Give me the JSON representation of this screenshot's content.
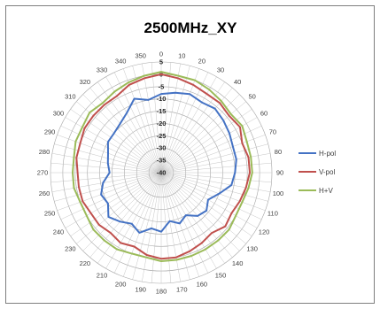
{
  "chart_data": {
    "type": "polar-line",
    "title": "2500MHz_XY",
    "angle_labels": [
      "0",
      "10",
      "20",
      "30",
      "40",
      "50",
      "60",
      "70",
      "80",
      "90",
      "100",
      "110",
      "120",
      "130",
      "140",
      "150",
      "160",
      "170",
      "180",
      "190",
      "200",
      "210",
      "220",
      "230",
      "240",
      "250",
      "260",
      "270",
      "280",
      "290",
      "300",
      "310",
      "320",
      "330",
      "340",
      "350"
    ],
    "radial_labels": [
      "5",
      "0",
      "-5",
      "-10",
      "-15",
      "-20",
      "-25",
      "-30",
      "-35",
      "-40"
    ],
    "r_range": [
      -40,
      5
    ],
    "angles": [
      0,
      10,
      20,
      30,
      40,
      50,
      60,
      70,
      80,
      90,
      100,
      110,
      120,
      130,
      140,
      150,
      160,
      170,
      180,
      190,
      200,
      210,
      220,
      230,
      240,
      250,
      260,
      270,
      280,
      290,
      300,
      310,
      320,
      330,
      340,
      350
    ],
    "series": [
      {
        "name": "H-pol",
        "color": "#4472c4",
        "values": [
          -8,
          -7,
          -6,
          -7,
          -6,
          -7,
          -8,
          -9,
          -9,
          -10,
          -11,
          -15,
          -18,
          -16,
          -17,
          -20,
          -18,
          -20,
          -16,
          -17,
          -14,
          -16,
          -14,
          -12,
          -15,
          -14,
          -16,
          -19,
          -18,
          -17,
          -15,
          -15,
          -14,
          -12,
          -8,
          -10
        ]
      },
      {
        "name": "V-pol",
        "color": "#c0504d",
        "values": [
          0,
          -1,
          -2,
          -3,
          -3,
          -4,
          -3,
          -5,
          -4,
          -4,
          -5,
          -6,
          -7,
          -6,
          -8,
          -7,
          -6,
          -5,
          -5,
          -6,
          -8,
          -7,
          -8,
          -7,
          -7,
          -6,
          -6,
          -6,
          -5,
          -5,
          -4,
          -4,
          -4,
          -4,
          -2,
          -1
        ]
      },
      {
        "name": "H+V",
        "color": "#9bbb59",
        "values": [
          1,
          0,
          0,
          -1,
          -2,
          -3,
          -2,
          -3,
          -3,
          -3,
          -4,
          -5,
          -5,
          -4,
          -4,
          -4,
          -4,
          -4,
          -4,
          -5,
          -5,
          -4,
          -4,
          -4,
          -5,
          -5,
          -4,
          -4,
          -4,
          -3,
          -3,
          -2,
          -3,
          -2,
          -1,
          0
        ]
      }
    ],
    "legend_position": "right",
    "grid": true
  }
}
